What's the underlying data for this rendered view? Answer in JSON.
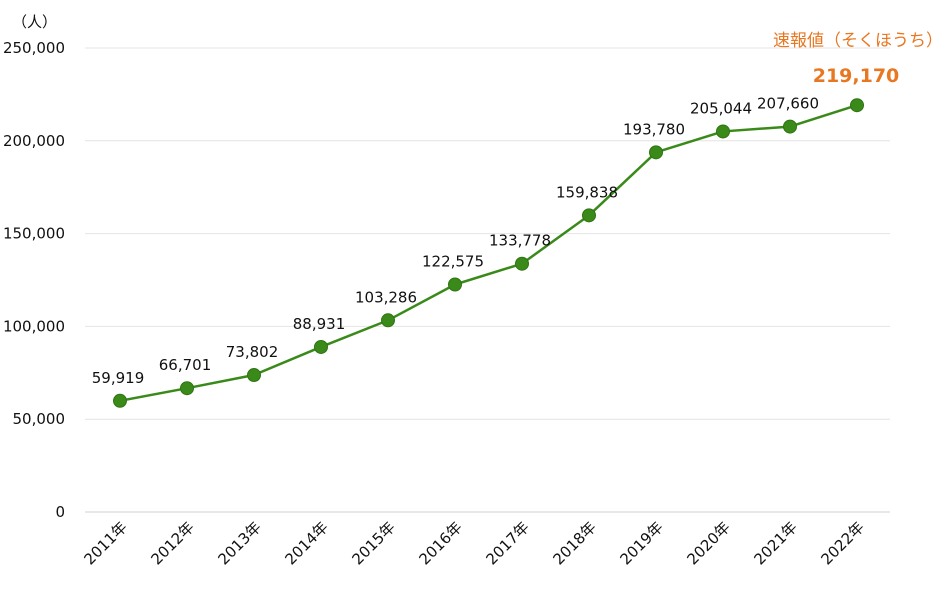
{
  "chart_data": {
    "type": "line",
    "unit_label": "（人）",
    "categories": [
      "2011年",
      "2012年",
      "2013年",
      "2014年",
      "2015年",
      "2016年",
      "2017年",
      "2018年",
      "2019年",
      "2020年",
      "2021年",
      "2022年"
    ],
    "series": [
      {
        "values": [
          59919,
          66701,
          73802,
          88931,
          103286,
          122575,
          133778,
          159838,
          193780,
          205044,
          207660,
          219170
        ]
      }
    ],
    "data_labels": [
      "59,919",
      "66,701",
      "73,802",
      "88,931",
      "103,286",
      "122,575",
      "133,778",
      "159,838",
      "193,780",
      "205,044",
      "207,660"
    ],
    "yticks": [
      0,
      50000,
      100000,
      150000,
      200000,
      250000
    ],
    "ytick_labels": [
      "0",
      "50,000",
      "100,000",
      "150,000",
      "200,000",
      "250,000"
    ],
    "ylim": [
      0,
      250000
    ],
    "grid": true,
    "line_color": "#3a8a1a",
    "marker_color": "#3a8a1a",
    "annotation": {
      "text": "速報値（そくほうち）",
      "value_label": "219,170",
      "color": "#e87722"
    }
  }
}
